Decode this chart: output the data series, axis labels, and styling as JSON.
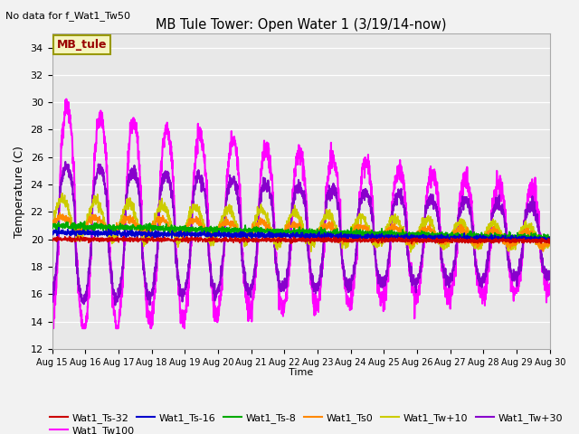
{
  "title": "MB Tule Tower: Open Water 1 (3/19/14-now)",
  "subtitle": "No data for f_Wat1_Tw50",
  "xlabel": "Time",
  "ylabel": "Temperature (C)",
  "ylim": [
    12,
    35
  ],
  "yticks": [
    12,
    14,
    16,
    18,
    20,
    22,
    24,
    26,
    28,
    30,
    32,
    34
  ],
  "x_start": 0,
  "x_end": 15,
  "plot_bg": "#e8e8e8",
  "fig_bg": "#f2f2f2",
  "legend_label": "MB_tule",
  "series": {
    "Wat1_Ts-32": {
      "color": "#cc0000",
      "lw": 1.2,
      "zorder": 5
    },
    "Wat1_Ts-16": {
      "color": "#0000cc",
      "lw": 1.2,
      "zorder": 5
    },
    "Wat1_Ts-8": {
      "color": "#00aa00",
      "lw": 1.2,
      "zorder": 5
    },
    "Wat1_Ts0": {
      "color": "#ff8800",
      "lw": 1.2,
      "zorder": 4
    },
    "Wat1_Tw+10": {
      "color": "#cccc00",
      "lw": 1.2,
      "zorder": 4
    },
    "Wat1_Tw+30": {
      "color": "#8800cc",
      "lw": 1.5,
      "zorder": 3
    },
    "Wat1_Tw100": {
      "color": "#ff00ff",
      "lw": 1.5,
      "zorder": 2
    }
  },
  "xtick_labels": [
    "Aug 15",
    "Aug 16",
    "Aug 17",
    "Aug 18",
    "Aug 19",
    "Aug 20",
    "Aug 21",
    "Aug 22",
    "Aug 23",
    "Aug 24",
    "Aug 25",
    "Aug 26",
    "Aug 27",
    "Aug 28",
    "Aug 29",
    "Aug 30"
  ],
  "xtick_positions": [
    0,
    1,
    2,
    3,
    4,
    5,
    6,
    7,
    8,
    9,
    10,
    11,
    12,
    13,
    14,
    15
  ],
  "legend_entries": [
    {
      "label": "Wat1_Ts-32",
      "color": "#cc0000"
    },
    {
      "label": "Wat1_Ts-16",
      "color": "#0000cc"
    },
    {
      "label": "Wat1_Ts-8",
      "color": "#00aa00"
    },
    {
      "label": "Wat1_Ts0",
      "color": "#ff8800"
    },
    {
      "label": "Wat1_Tw+10",
      "color": "#cccc00"
    },
    {
      "label": "Wat1_Tw+30",
      "color": "#8800cc"
    },
    {
      "label": "Wat1_Tw100",
      "color": "#ff00ff"
    }
  ]
}
